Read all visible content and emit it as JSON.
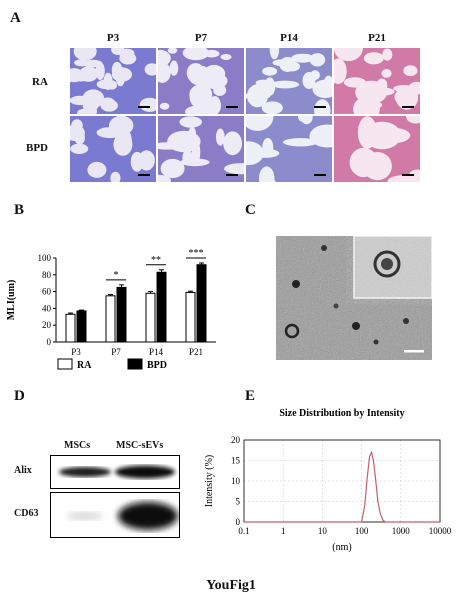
{
  "panels": {
    "a": {
      "letter": "A",
      "columns": [
        "P3",
        "P7",
        "P14",
        "P21"
      ],
      "rows": [
        "RA",
        "BPD"
      ]
    },
    "b": {
      "letter": "B"
    },
    "c": {
      "letter": "C"
    },
    "d": {
      "letter": "D",
      "col_labels": [
        "MSCs",
        "MSC-sEVs"
      ],
      "row_labels": [
        "Alix",
        "CD63"
      ]
    },
    "e": {
      "letter": "E"
    }
  },
  "chart_data": [
    {
      "type": "bar",
      "ylabel": "MLI(um)",
      "ylim": [
        0,
        100
      ],
      "yticks": [
        0,
        20,
        40,
        60,
        80,
        100
      ],
      "categories": [
        "P3",
        "P7",
        "P14",
        "P21"
      ],
      "series": [
        {
          "name": "RA",
          "values": [
            33,
            55,
            58,
            59
          ],
          "errors": [
            1.5,
            1.5,
            2,
            1.5
          ]
        },
        {
          "name": "BPD",
          "values": [
            37,
            65,
            83,
            92
          ],
          "errors": [
            1,
            3,
            3,
            2
          ]
        }
      ],
      "significance": [
        "",
        "*",
        "**",
        "***"
      ],
      "legend_placement": "bottom"
    },
    {
      "type": "line",
      "title": "Size Distribution by Intensity",
      "xlabel": "(nm)",
      "ylabel": "Intensity (%)",
      "x_scale": "log",
      "xlim": [
        0.1,
        10000
      ],
      "xticks": [
        "0.1",
        "1",
        "10",
        "100",
        "1000",
        "10000"
      ],
      "ylim": [
        0,
        20
      ],
      "yticks": [
        0,
        5,
        10,
        15,
        20
      ],
      "series": [
        {
          "x": [
            100,
            120,
            140,
            160,
            180,
            200,
            230,
            260,
            300,
            350,
            400
          ],
          "y": [
            0,
            4,
            11,
            16,
            17,
            15,
            10,
            5,
            2,
            0.5,
            0
          ]
        }
      ],
      "grid": true,
      "color": "#c0606a"
    }
  ],
  "figure_caption": "YouFig1"
}
